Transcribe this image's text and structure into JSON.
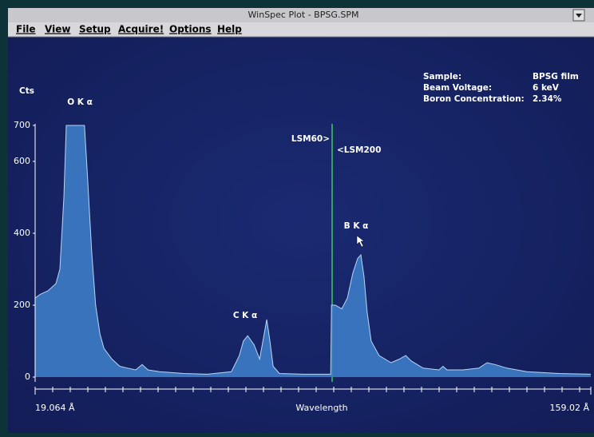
{
  "window": {
    "title": "WinSpec Plot - BPSG.SPM",
    "menu": [
      "File",
      "View",
      "Setup",
      "Acquire!",
      "Options",
      "Help"
    ]
  },
  "sample_info": [
    {
      "label": "Sample:",
      "value": "BPSG film"
    },
    {
      "label": "Beam Voltage:",
      "value": "6 keV"
    },
    {
      "label": "Boron Concentration:",
      "value": "2.34%"
    }
  ],
  "chart_data": {
    "type": "area",
    "y_label": "Cts",
    "x_label": "Wavelength",
    "annotations": [
      "O K α",
      "C K α",
      "B K α",
      "LSM60>",
      "<LSM200"
    ],
    "color": "#3d7cc6",
    "xlim": [
      19.064,
      159.02
    ],
    "xticks": [
      {
        "value": 19.064,
        "label": "19.064 Å"
      },
      {
        "value": 159.02,
        "label": "159.02 Å"
      }
    ],
    "ylim": [
      0,
      700
    ],
    "yticks": [
      0,
      200,
      400,
      600,
      700
    ],
    "x": [
      19.1,
      20.3,
      22.3,
      24.3,
      25.3,
      26.3,
      26.9,
      31.5,
      32.3,
      33.3,
      34.3,
      35.4,
      36.4,
      38.4,
      40.4,
      42.4,
      44.4,
      46.0,
      47.5,
      50.4,
      56.5,
      62.5,
      68.5,
      70.5,
      71.5,
      72.6,
      74.2,
      75.6,
      76.6,
      77.4,
      78.2,
      79.0,
      80.6,
      86.6,
      93.5,
      93.7,
      94.7,
      96.3,
      97.7,
      99.1,
      100.3,
      101.1,
      101.9,
      102.7,
      103.7,
      105.7,
      108.7,
      110.8,
      112.4,
      113.8,
      116.8,
      120.8,
      121.8,
      122.8,
      126.8,
      130.8,
      132.9,
      134.9,
      137.9,
      142.9,
      151.0,
      159.0
    ],
    "values": [
      220,
      230,
      240,
      260,
      300,
      500,
      700,
      700,
      550,
      350,
      200,
      120,
      80,
      50,
      30,
      25,
      20,
      35,
      20,
      15,
      10,
      8,
      15,
      60,
      100,
      115,
      90,
      50,
      110,
      160,
      100,
      30,
      10,
      8,
      8,
      200,
      200,
      190,
      220,
      290,
      330,
      340,
      280,
      180,
      100,
      60,
      40,
      50,
      60,
      45,
      25,
      20,
      30,
      20,
      20,
      25,
      40,
      35,
      25,
      15,
      10,
      8
    ]
  }
}
